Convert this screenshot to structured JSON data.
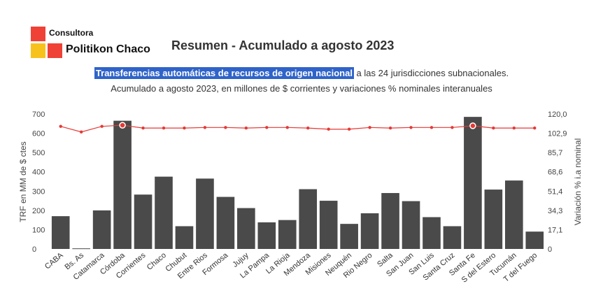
{
  "brand": {
    "top": "Consultora",
    "main": "Politikon Chaco"
  },
  "title": "Resumen - Acumulado a agosto 2023",
  "subtitle": {
    "highlight": "Transferencias automáticas de recursos de origen nacional",
    "rest": " a las 24 jurisdicciones subnacionales.",
    "line2": "Acumulado a agosto 2023, en millones de $ corrientes y variaciones % nominales interanuales"
  },
  "colors": {
    "bars": "#4a4a4a",
    "line": "#e53935",
    "highlight": "#2f63c9"
  },
  "chart_data": {
    "type": "bar",
    "categories": [
      "CABA",
      "Bs. As",
      "Catamarca",
      "Córdoba",
      "Corrientes",
      "Chaco",
      "Chubut",
      "Entre Rios",
      "Formosa",
      "Jujuy",
      "La Pampa",
      "La Rioja",
      "Mendoza",
      "Misiones",
      "Neuquén",
      "Rio Negro",
      "Salta",
      "San Juan",
      "San Luis",
      "Santa Cruz",
      "Santa Fe",
      "S del Estero",
      "Tucumán",
      "T del Fuego"
    ],
    "series": [
      {
        "axis": "left",
        "kind": "bar",
        "values": [
          170,
          3,
          200,
          665,
          282,
          375,
          118,
          365,
          270,
          212,
          138,
          150,
          310,
          250,
          130,
          185,
          290,
          248,
          165,
          118,
          685,
          308,
          355,
          90
        ]
      },
      {
        "axis": "right",
        "kind": "line",
        "values": [
          109,
          104,
          109,
          110,
          107.5,
          107.5,
          107.5,
          108,
          108,
          107.5,
          108,
          108,
          107.5,
          106.5,
          106.5,
          108,
          107.5,
          108,
          108,
          108,
          109.5,
          107.5,
          107.5,
          107.5
        ]
      }
    ],
    "ylabel": "TRF en MM de $ ctes",
    "y2label": "Variación % i.a nominal",
    "ylim": [
      0,
      700
    ],
    "y2lim": [
      0,
      120
    ],
    "yticks": [
      "0",
      "100",
      "200",
      "300",
      "400",
      "500",
      "600",
      "700"
    ],
    "y2ticks": [
      "0",
      "17,1",
      "34,3",
      "51,4",
      "68,6",
      "85,7",
      "102,9",
      "120,0"
    ],
    "grid": false
  }
}
